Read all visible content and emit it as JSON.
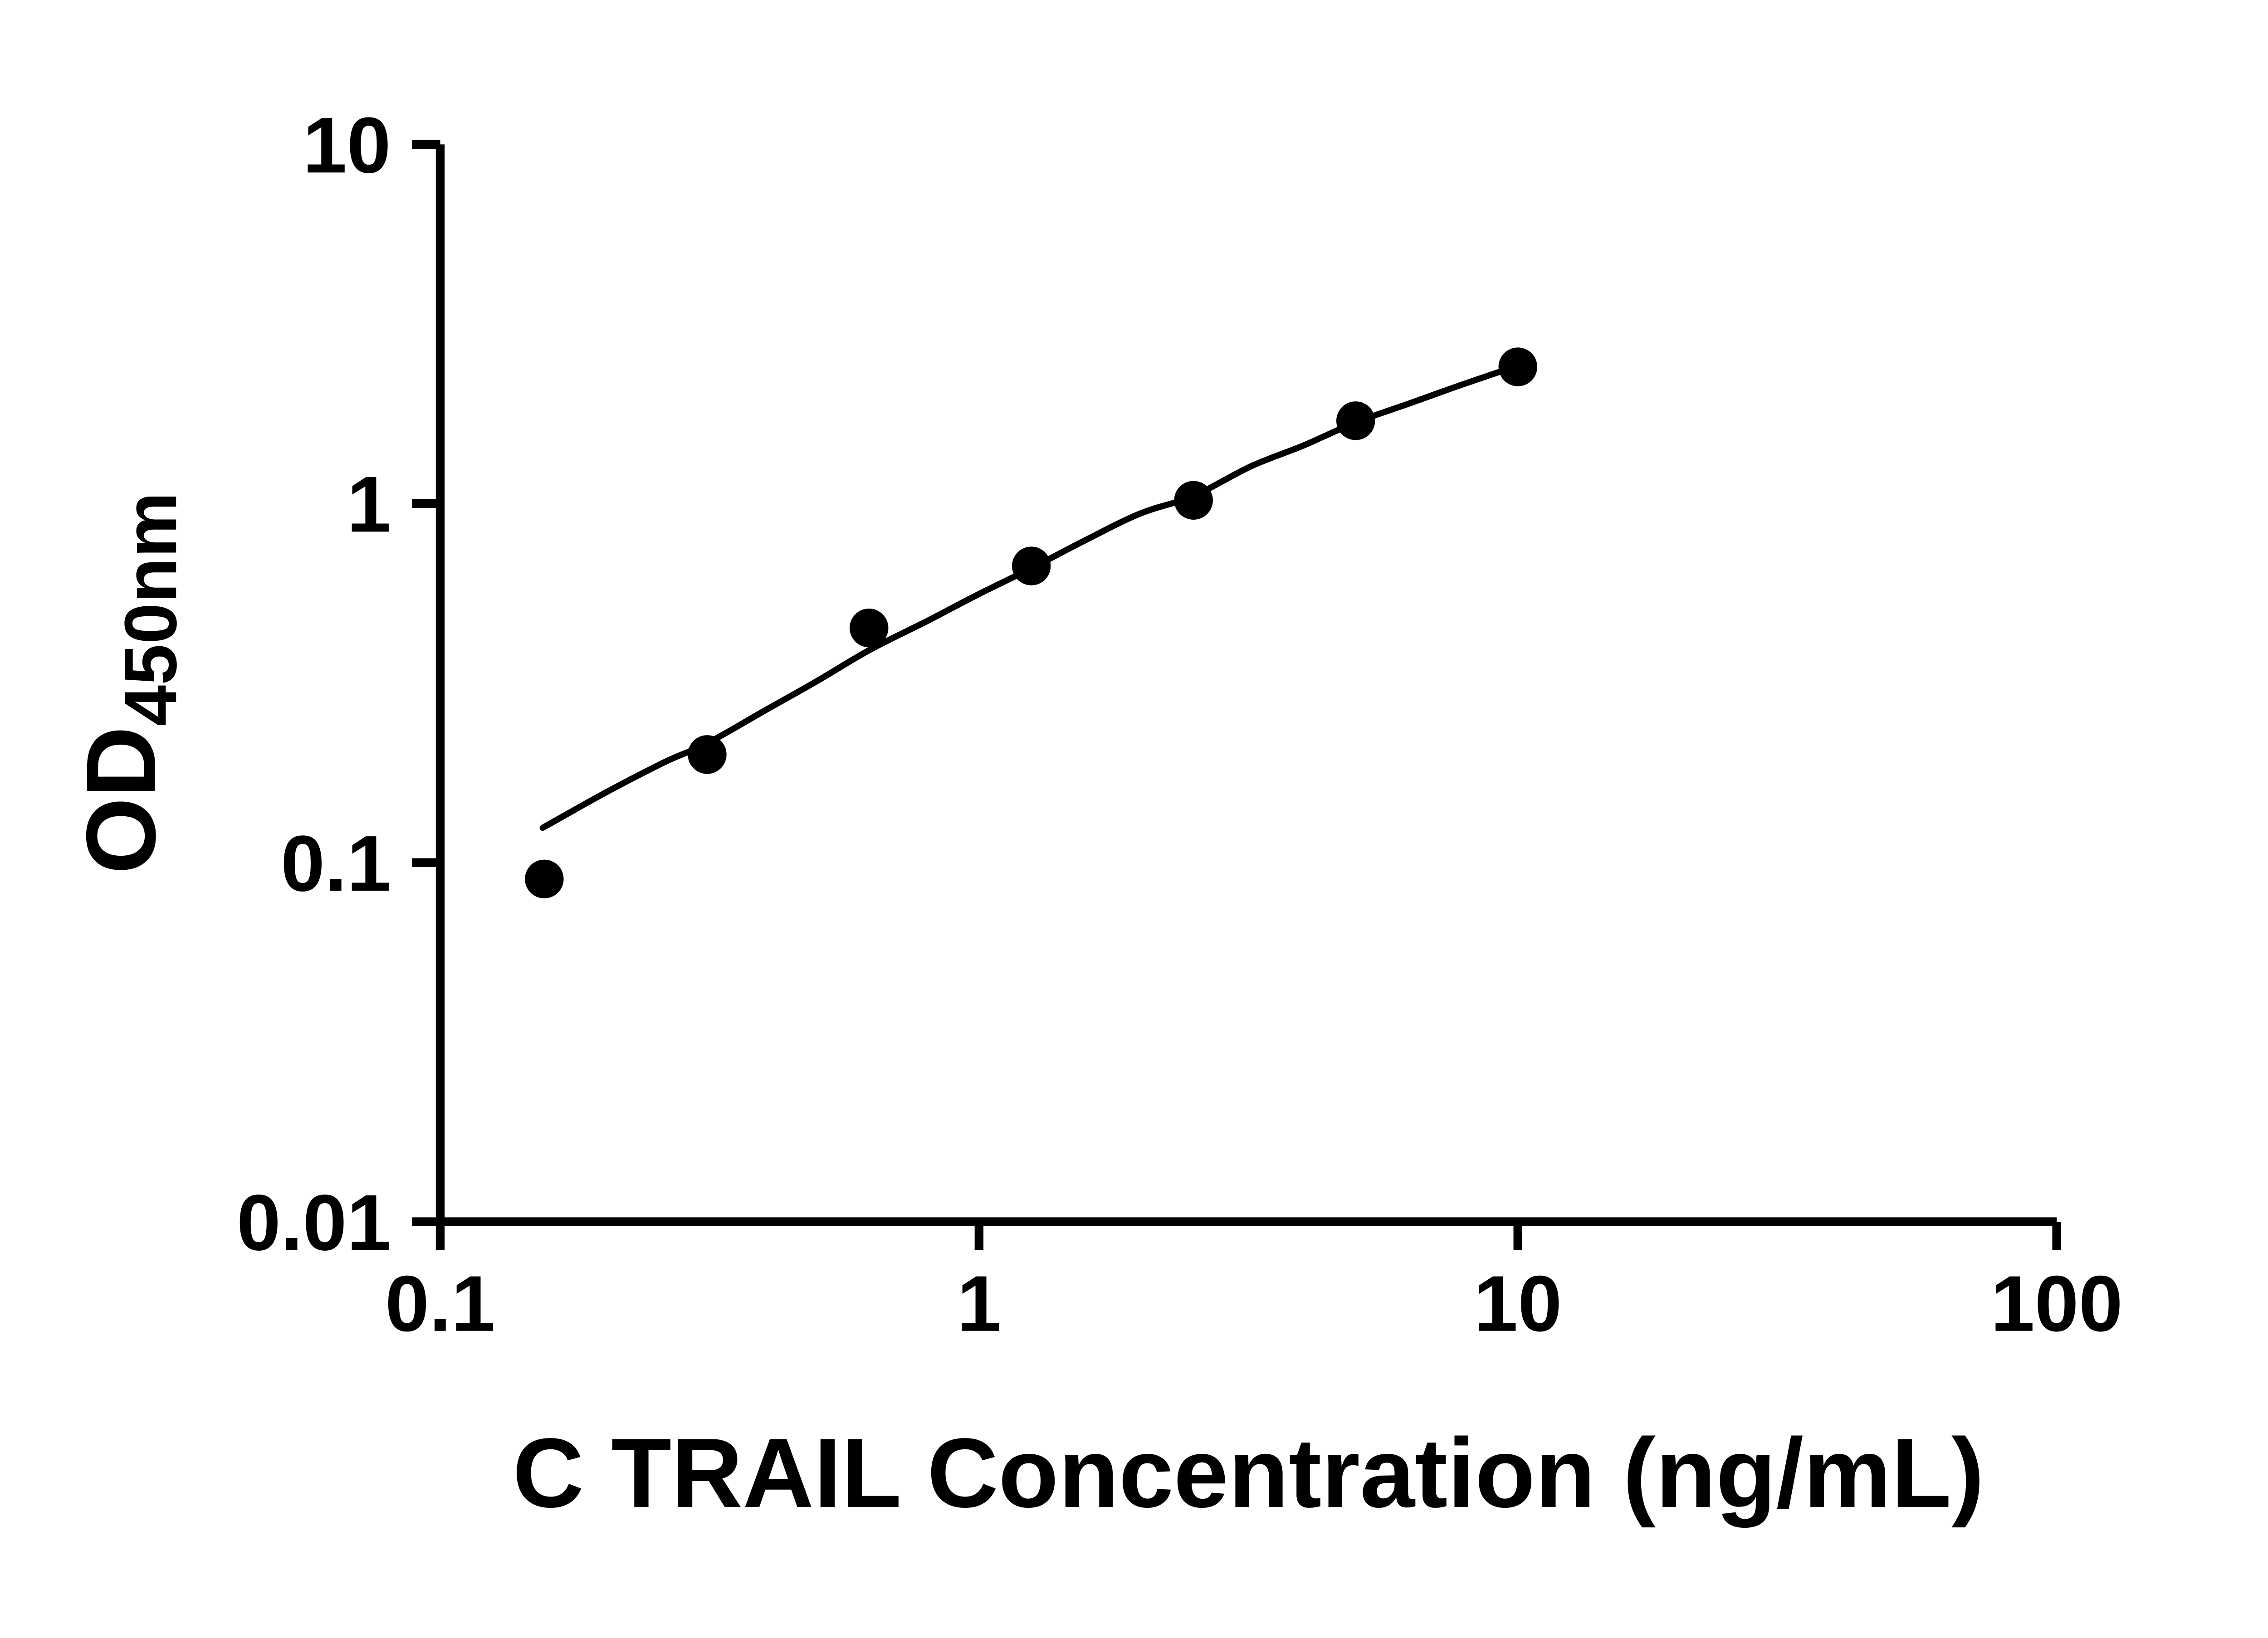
{
  "chart_data": {
    "type": "scatter",
    "title": "",
    "xlabel": "C TRAIL Concentration (ng/mL)",
    "ylabel": {
      "main": "OD",
      "sub": "450nm"
    },
    "x_scale": "log",
    "y_scale": "log",
    "xlim": [
      0.1,
      100
    ],
    "ylim": [
      0.01,
      10
    ],
    "grid": false,
    "legend": "none",
    "x_ticks": [
      {
        "value": 0.1,
        "label": "0.1"
      },
      {
        "value": 1,
        "label": "1"
      },
      {
        "value": 10,
        "label": "10"
      },
      {
        "value": 100,
        "label": "100"
      }
    ],
    "y_ticks": [
      {
        "value": 0.01,
        "label": "0.01"
      },
      {
        "value": 0.1,
        "label": "0.1"
      },
      {
        "value": 1,
        "label": "1"
      },
      {
        "value": 10,
        "label": "10"
      }
    ],
    "colors": {
      "points": "#000000",
      "curve": "#000000",
      "axis": "#000000",
      "text": "#000000"
    },
    "series": [
      {
        "name": "standard-points",
        "type": "scatter",
        "marker": "filled-circle",
        "points": [
          {
            "x": 0.156,
            "y": 0.09
          },
          {
            "x": 0.313,
            "y": 0.2
          },
          {
            "x": 0.625,
            "y": 0.45
          },
          {
            "x": 1.25,
            "y": 0.67
          },
          {
            "x": 2.5,
            "y": 1.02
          },
          {
            "x": 5,
            "y": 1.7
          },
          {
            "x": 10,
            "y": 2.4
          }
        ]
      },
      {
        "name": "fit-curve",
        "type": "line",
        "points": [
          {
            "x": 0.155,
            "y": 0.125
          },
          {
            "x": 0.2,
            "y": 0.155
          },
          {
            "x": 0.26,
            "y": 0.19
          },
          {
            "x": 0.313,
            "y": 0.215
          },
          {
            "x": 0.4,
            "y": 0.265
          },
          {
            "x": 0.5,
            "y": 0.32
          },
          {
            "x": 0.625,
            "y": 0.39
          },
          {
            "x": 0.8,
            "y": 0.47
          },
          {
            "x": 1.0,
            "y": 0.56
          },
          {
            "x": 1.25,
            "y": 0.66
          },
          {
            "x": 1.6,
            "y": 0.8
          },
          {
            "x": 2.0,
            "y": 0.94
          },
          {
            "x": 2.5,
            "y": 1.05
          },
          {
            "x": 3.2,
            "y": 1.27
          },
          {
            "x": 4.0,
            "y": 1.45
          },
          {
            "x": 5.0,
            "y": 1.68
          },
          {
            "x": 6.3,
            "y": 1.9
          },
          {
            "x": 8.0,
            "y": 2.16
          },
          {
            "x": 10.0,
            "y": 2.42
          }
        ]
      }
    ]
  }
}
